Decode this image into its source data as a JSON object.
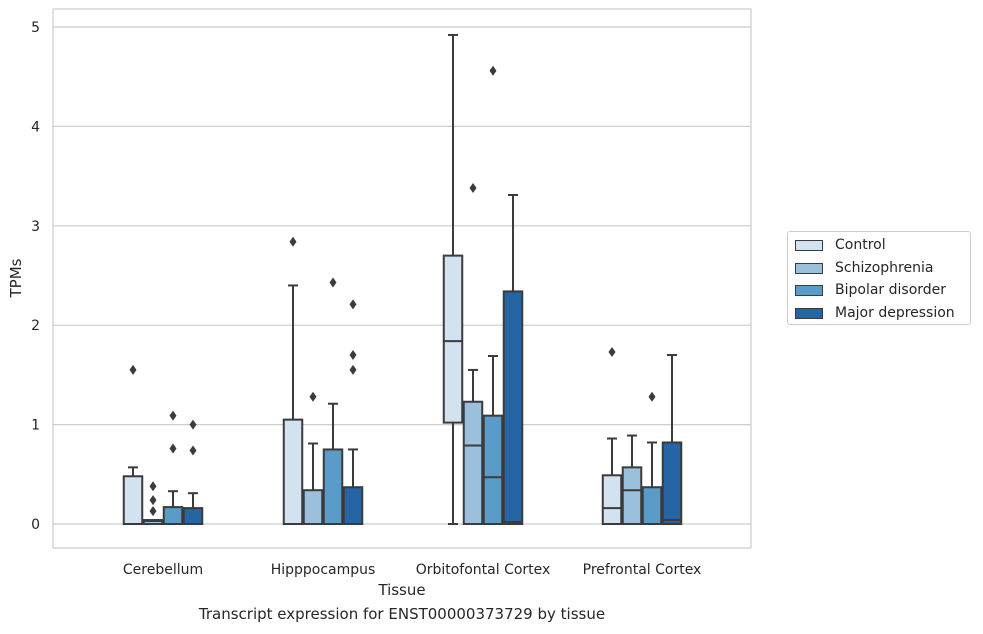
{
  "caption": "Transcript expression for ENST00000373729 by tissue",
  "chart_data": {
    "type": "box",
    "xlabel": "Tissue",
    "ylabel": "TPMs",
    "ylim": [
      -0.24,
      5.18
    ],
    "yticks": [
      0,
      1,
      2,
      3,
      4,
      5
    ],
    "grid": "horizontal",
    "legend_position": "right",
    "categories": [
      "Cerebellum",
      "Hipppocampus",
      "Orbitofontal Cortex",
      "Prefrontal Cortex"
    ],
    "series": [
      {
        "name": "Control",
        "color": "#d3e2f0",
        "boxes": [
          {
            "whisker_low": 0,
            "q1": 0,
            "median": 0,
            "q3": 0.48,
            "whisker_high": 0.57,
            "outliers": [
              1.55
            ]
          },
          {
            "whisker_low": 0,
            "q1": 0,
            "median": 0,
            "q3": 1.05,
            "whisker_high": 2.4,
            "outliers": [
              2.84
            ]
          },
          {
            "whisker_low": 0,
            "q1": 1.02,
            "median": 1.84,
            "q3": 2.7,
            "whisker_high": 4.92,
            "outliers": []
          },
          {
            "whisker_low": 0,
            "q1": 0,
            "median": 0.16,
            "q3": 0.49,
            "whisker_high": 0.86,
            "outliers": [
              1.73
            ]
          }
        ]
      },
      {
        "name": "Schizophrenia",
        "color": "#9ac0db",
        "boxes": [
          {
            "whisker_low": 0,
            "q1": 0,
            "median": 0.03,
            "q3": 0.04,
            "whisker_high": 0.04,
            "outliers": [
              0.13,
              0.24,
              0.38
            ]
          },
          {
            "whisker_low": 0,
            "q1": 0,
            "median": 0,
            "q3": 0.34,
            "whisker_high": 0.81,
            "outliers": [
              1.28
            ]
          },
          {
            "whisker_low": 0,
            "q1": 0,
            "median": 0.79,
            "q3": 1.23,
            "whisker_high": 1.55,
            "outliers": [
              3.38
            ]
          },
          {
            "whisker_low": 0,
            "q1": 0,
            "median": 0.34,
            "q3": 0.57,
            "whisker_high": 0.89,
            "outliers": []
          }
        ]
      },
      {
        "name": "Bipolar disorder",
        "color": "#5a9bc8",
        "boxes": [
          {
            "whisker_low": 0,
            "q1": 0,
            "median": 0,
            "q3": 0.17,
            "whisker_high": 0.33,
            "outliers": [
              0.76,
              1.09
            ]
          },
          {
            "whisker_low": 0,
            "q1": 0,
            "median": 0,
            "q3": 0.75,
            "whisker_high": 1.21,
            "outliers": [
              2.43
            ]
          },
          {
            "whisker_low": 0,
            "q1": 0,
            "median": 0.47,
            "q3": 1.09,
            "whisker_high": 1.69,
            "outliers": [
              4.56
            ]
          },
          {
            "whisker_low": 0,
            "q1": 0,
            "median": 0,
            "q3": 0.37,
            "whisker_high": 0.82,
            "outliers": [
              1.28
            ]
          }
        ]
      },
      {
        "name": "Major depression",
        "color": "#2565a3",
        "boxes": [
          {
            "whisker_low": 0,
            "q1": 0,
            "median": 0,
            "q3": 0.16,
            "whisker_high": 0.31,
            "outliers": [
              0.74,
              1.0
            ]
          },
          {
            "whisker_low": 0,
            "q1": 0,
            "median": 0,
            "q3": 0.37,
            "whisker_high": 0.75,
            "outliers": [
              1.55,
              1.7,
              2.21
            ]
          },
          {
            "whisker_low": 0,
            "q1": 0,
            "median": 0.02,
            "q3": 2.34,
            "whisker_high": 3.31,
            "outliers": []
          },
          {
            "whisker_low": 0,
            "q1": 0,
            "median": 0.04,
            "q3": 0.82,
            "whisker_high": 1.7,
            "outliers": []
          }
        ]
      }
    ]
  }
}
